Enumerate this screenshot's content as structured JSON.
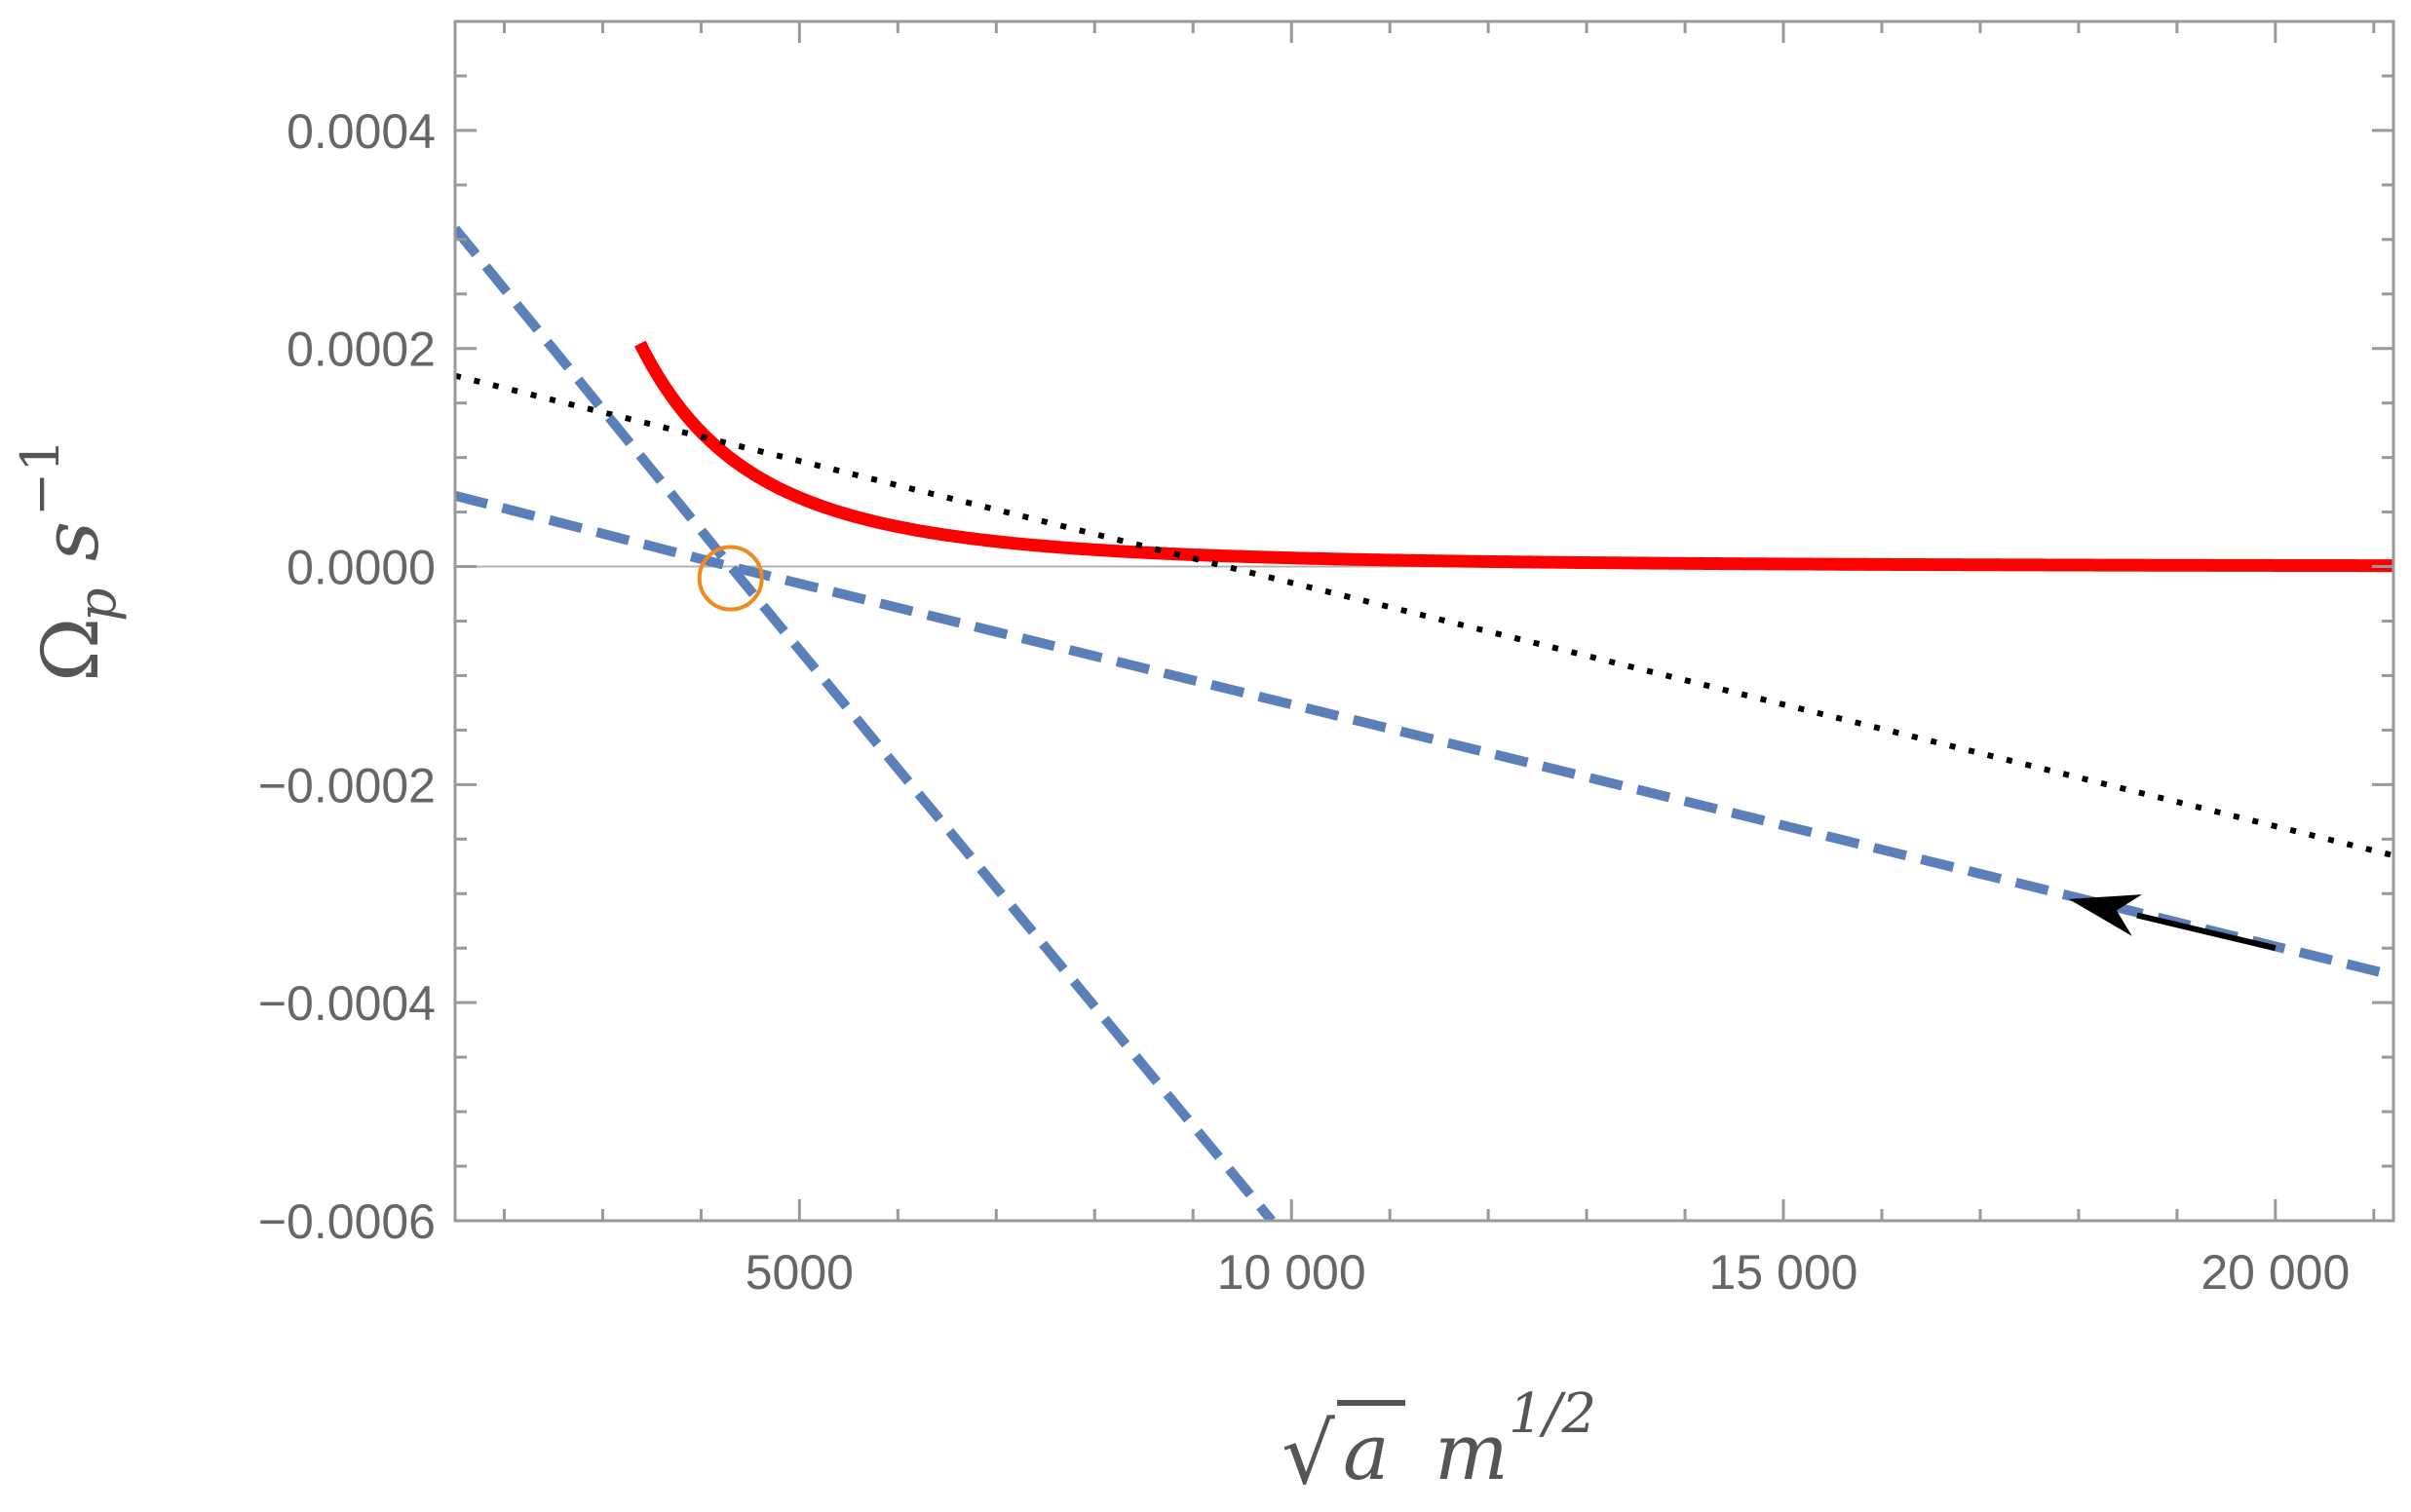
{
  "chart_data": {
    "type": "line",
    "title": "",
    "xlabel": "√a m^1/2",
    "xlabel_parts": {
      "radical": "√",
      "radicand": "a",
      "unit": "m",
      "unit_exp": "1/2"
    },
    "ylabel": "Ωp s^-1",
    "ylabel_parts": {
      "symbol": "Ω",
      "symbol_sub": "p",
      "unit": "s",
      "unit_exp": "−1"
    },
    "xlim": [
      1500,
      21200
    ],
    "ylim": [
      -0.0006,
      0.0005
    ],
    "x_ticks": [
      {
        "value": 5000,
        "label": "5000"
      },
      {
        "value": 10000,
        "label": "10 000"
      },
      {
        "value": 15000,
        "label": "15 000"
      },
      {
        "value": 20000,
        "label": "20 000"
      }
    ],
    "y_ticks": [
      {
        "value": 0.0004,
        "label": "0.0004"
      },
      {
        "value": 0.0002,
        "label": "0.0002"
      },
      {
        "value": 0.0,
        "label": "0.0000"
      },
      {
        "value": -0.0002,
        "label": "−0.0002"
      },
      {
        "value": -0.0004,
        "label": "−0.0004"
      },
      {
        "value": -0.0006,
        "label": "−0.0006"
      }
    ],
    "x_minor_step": 1000,
    "y_minor_step": 5e-05,
    "zero_line": true,
    "grid": false,
    "series": [
      {
        "name": "red solid curve",
        "style": "solid",
        "color": "#ff0000",
        "formula": "y = k / x^3",
        "k": 7900000,
        "x_range": [
          3380,
          21200
        ]
      },
      {
        "name": "black dotted line",
        "style": "dotted",
        "color": "#000000",
        "points": [
          [
            1500,
            0.000175
          ],
          [
            21200,
            -0.000265
          ]
        ]
      },
      {
        "name": "blue dashed steep line",
        "style": "dashed",
        "color": "#5b7fb8",
        "points": [
          [
            1500,
            0.00031
          ],
          [
            4300,
            0.0
          ],
          [
            9800,
            -0.0006
          ]
        ]
      },
      {
        "name": "blue dashed shallow line",
        "style": "dashed",
        "color": "#5b7fb8",
        "points": [
          [
            1500,
            6.5e-05
          ],
          [
            4300,
            0.0
          ],
          [
            21200,
            -0.000375
          ]
        ]
      }
    ],
    "annotations": [
      {
        "type": "circle",
        "name": "intersection-marker",
        "x": 4300,
        "y": 0.0,
        "color": "#f08a1e"
      },
      {
        "type": "arrow",
        "name": "direction-arrow",
        "from": [
          20000,
          -0.00035
        ],
        "to": [
          17900,
          -0.000305
        ],
        "color": "#000000"
      }
    ]
  }
}
